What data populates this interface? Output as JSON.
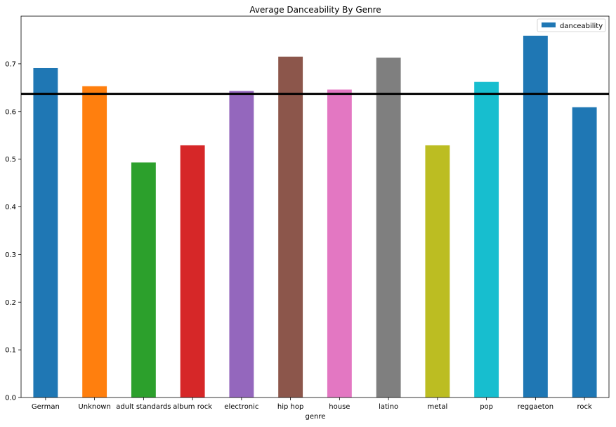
{
  "chart_data": {
    "type": "bar",
    "title": "Average Danceability By Genre",
    "xlabel": "genre",
    "ylabel": "",
    "ylim": [
      0,
      0.8
    ],
    "yticks": [
      0.0,
      0.1,
      0.2,
      0.3,
      0.4,
      0.5,
      0.6,
      0.7
    ],
    "ytick_labels": [
      "0.0",
      "0.1",
      "0.2",
      "0.3",
      "0.4",
      "0.5",
      "0.6",
      "0.7"
    ],
    "categories": [
      "German",
      "Unknown",
      "adult standards",
      "album rock",
      "electronic",
      "hip hop",
      "house",
      "latino",
      "metal",
      "pop",
      "reggaeton",
      "rock"
    ],
    "series": [
      {
        "name": "danceability",
        "values": [
          0.691,
          0.653,
          0.493,
          0.529,
          0.643,
          0.715,
          0.646,
          0.713,
          0.529,
          0.662,
          0.759,
          0.609
        ]
      }
    ],
    "bar_colors": [
      "#1f77b4",
      "#ff7f0e",
      "#2ca02c",
      "#d62728",
      "#9467bd",
      "#8c564b",
      "#e377c2",
      "#7f7f7f",
      "#bcbd22",
      "#17becf",
      "#1f77b4",
      "#1f77b4"
    ],
    "legend": {
      "position": "top-right",
      "label": "danceability",
      "color": "#1f77b4"
    },
    "reference_line": {
      "value": 0.637,
      "color": "#000000"
    },
    "grid": false
  }
}
